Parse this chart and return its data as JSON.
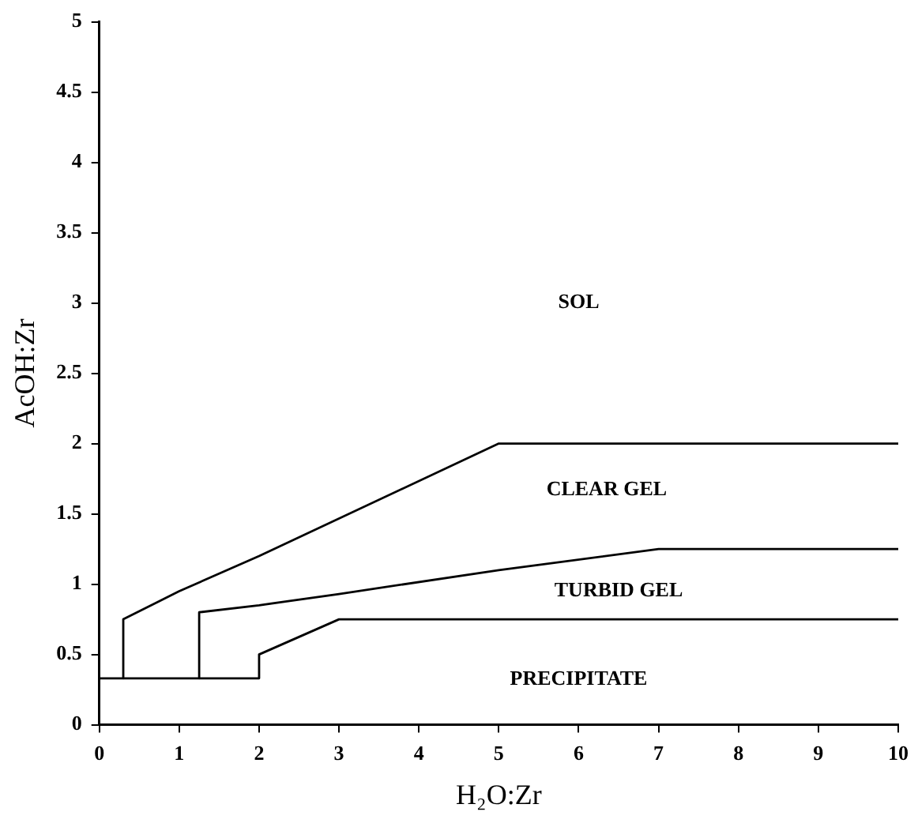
{
  "chart_data": {
    "type": "line",
    "xlabel": "H₂O:Zr",
    "ylabel": "AcOH:Zr",
    "xlim": [
      0,
      10
    ],
    "xticks": [
      0,
      1,
      2,
      3,
      4,
      5,
      6,
      7,
      8,
      9,
      10
    ],
    "ylim": [
      0,
      5
    ],
    "yticks": [
      0,
      0.5,
      1,
      1.5,
      2,
      2.5,
      3,
      3.5,
      4,
      4.5,
      5
    ],
    "grid": false,
    "legend": false,
    "marker": "none",
    "line_style": "solid",
    "series": [
      {
        "color": "#000000",
        "x": [
          0.3,
          0.3,
          1,
          2,
          5,
          10
        ],
        "values": [
          0.33,
          0.75,
          0.95,
          1.2,
          2.0,
          2.0
        ]
      },
      {
        "color": "#000000",
        "x": [
          1.25,
          1.25,
          2,
          3,
          5,
          7,
          10
        ],
        "values": [
          0.33,
          0.8,
          0.85,
          0.93,
          1.1,
          1.25,
          1.25
        ]
      },
      {
        "color": "#000000",
        "x": [
          0,
          2,
          2,
          3,
          10
        ],
        "values": [
          0.33,
          0.33,
          0.5,
          0.75,
          0.75
        ]
      }
    ],
    "annotations": [
      "SOL",
      "CLEAR GEL",
      "TURBID GEL",
      "PRECIPITATE"
    ]
  }
}
